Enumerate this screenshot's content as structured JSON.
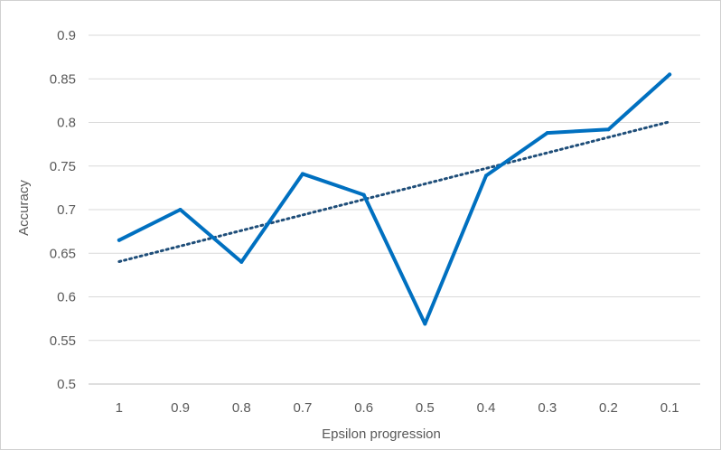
{
  "chart_data": {
    "type": "line",
    "title": "",
    "xlabel": "Epsilon progression",
    "ylabel": "Accuracy",
    "categories": [
      "1",
      "0.9",
      "0.8",
      "0.7",
      "0.6",
      "0.5",
      "0.4",
      "0.3",
      "0.2",
      "0.1"
    ],
    "series": [
      {
        "values": [
          0.665,
          0.7,
          0.64,
          0.741,
          0.717,
          0.569,
          0.739,
          0.788,
          0.792,
          0.855
        ],
        "color": "#0070c0",
        "style": "solid"
      }
    ],
    "trendline": {
      "type": "linear",
      "color": "#1f4e79",
      "style": "dotted"
    },
    "yticks": [
      "0.5",
      "0.55",
      "0.6",
      "0.65",
      "0.7",
      "0.75",
      "0.8",
      "0.85",
      "0.9"
    ],
    "ylim": [
      0.5,
      0.9
    ],
    "grid": true,
    "legend": "none"
  }
}
